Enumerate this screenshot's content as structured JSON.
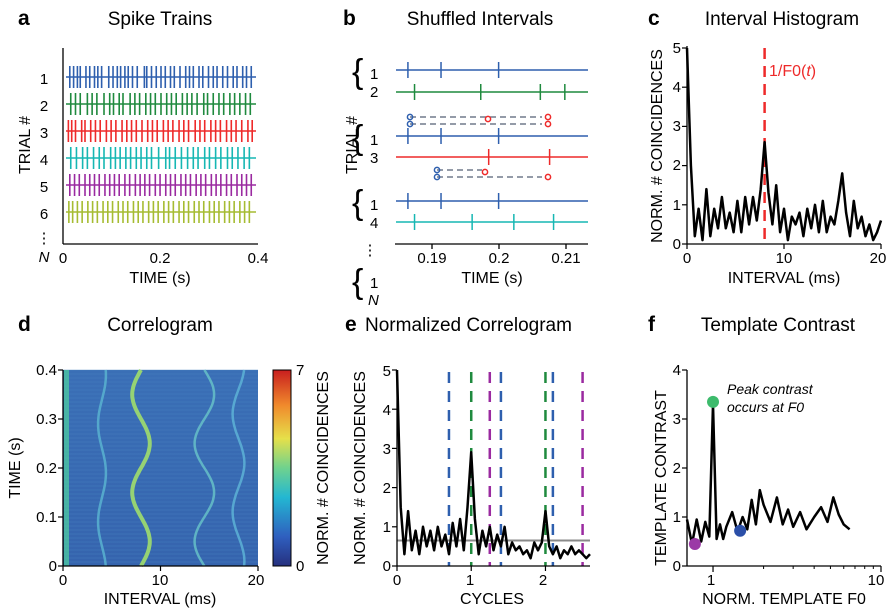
{
  "figure": {
    "panels": [
      {
        "letter": "a",
        "title": "Spike Trains",
        "xlabel": "TIME (s)",
        "ylabel": "TRIAL #"
      },
      {
        "letter": "b",
        "title": "Shuffled Intervals",
        "xlabel": "TIME (s)",
        "ylabel": "TRIAL #"
      },
      {
        "letter": "c",
        "title": "Interval Histogram",
        "xlabel": "INTERVAL (ms)",
        "ylabel": "NORM. # COINCIDENCES",
        "annotation": "1/F0(t)"
      },
      {
        "letter": "d",
        "title": "Correlogram",
        "xlabel": "INTERVAL (ms)",
        "ylabel": "TIME (s)",
        "colorbar_label": "NORM. # COINCIDENCES"
      },
      {
        "letter": "e",
        "title": "Normalized Correlogram",
        "xlabel": "CYCLES",
        "ylabel": "NORM. # COINCIDENCES"
      },
      {
        "letter": "f",
        "title": "Template Contrast",
        "xlabel": "NORM. TEMPLATE F0",
        "ylabel": "TEMPLATE CONTRAST",
        "annotation_line1": "Peak contrast",
        "annotation_line2": "occurs at F0"
      }
    ]
  },
  "colors": {
    "blue": "#2e5fae",
    "green": "#1f8a3e",
    "red": "#ee2a2a",
    "cyan": "#16b7b3",
    "purple": "#9a2aa0",
    "olive": "#a6bc32",
    "gray": "#8a8a8a",
    "dashgray": "#707a8c",
    "black": "#000000",
    "marker_green": "#3dbb6c",
    "marker_blue": "#2b4fa8",
    "marker_purple": "#9b3aa6"
  },
  "chart_data": [
    {
      "panel": "a",
      "type": "raster",
      "trial_labels": [
        "1",
        "2",
        "3",
        "4",
        "5",
        "6",
        "⋮",
        "N"
      ],
      "xticks": [
        "0",
        "0.2",
        "0.4"
      ],
      "xlim": [
        0,
        0.4
      ],
      "trials": [
        {
          "name": "1",
          "color": "blue",
          "spikes": [
            0.008,
            0.016,
            0.024,
            0.03,
            0.042,
            0.05,
            0.06,
            0.067,
            0.075,
            0.09,
            0.099,
            0.108,
            0.115,
            0.124,
            0.131,
            0.14,
            0.15,
            0.165,
            0.17,
            0.18,
            0.19,
            0.2,
            0.209,
            0.22,
            0.228,
            0.24,
            0.252,
            0.26,
            0.268,
            0.28,
            0.288,
            0.3,
            0.31,
            0.318,
            0.33,
            0.34,
            0.352,
            0.36,
            0.372,
            0.38,
            0.39
          ]
        },
        {
          "name": "2",
          "color": "green",
          "spikes": [
            0.01,
            0.02,
            0.03,
            0.045,
            0.055,
            0.065,
            0.08,
            0.092,
            0.1,
            0.112,
            0.12,
            0.135,
            0.145,
            0.155,
            0.168,
            0.178,
            0.188,
            0.2,
            0.212,
            0.222,
            0.232,
            0.245,
            0.255,
            0.265,
            0.276,
            0.29,
            0.298,
            0.31,
            0.322,
            0.332,
            0.345,
            0.355,
            0.366,
            0.378,
            0.388
          ]
        },
        {
          "name": "3",
          "color": "red",
          "spikes": [
            0.005,
            0.012,
            0.02,
            0.033,
            0.04,
            0.052,
            0.062,
            0.072,
            0.085,
            0.095,
            0.105,
            0.118,
            0.128,
            0.138,
            0.148,
            0.16,
            0.172,
            0.182,
            0.192,
            0.205,
            0.215,
            0.225,
            0.238,
            0.248,
            0.258,
            0.272,
            0.282,
            0.292,
            0.305,
            0.315,
            0.325,
            0.338,
            0.348,
            0.358,
            0.37,
            0.383,
            0.392
          ]
        },
        {
          "name": "4",
          "color": "cyan",
          "spikes": [
            0.01,
            0.022,
            0.035,
            0.045,
            0.058,
            0.07,
            0.08,
            0.094,
            0.104,
            0.114,
            0.126,
            0.136,
            0.148,
            0.158,
            0.17,
            0.18,
            0.195,
            0.21,
            0.218,
            0.23,
            0.243,
            0.256,
            0.268,
            0.278,
            0.292,
            0.302,
            0.315,
            0.326,
            0.34,
            0.35,
            0.362,
            0.375,
            0.386
          ]
        },
        {
          "name": "5",
          "color": "purple",
          "spikes": [
            0.008,
            0.018,
            0.028,
            0.04,
            0.05,
            0.06,
            0.07,
            0.082,
            0.092,
            0.102,
            0.112,
            0.124,
            0.134,
            0.146,
            0.156,
            0.166,
            0.176,
            0.188,
            0.198,
            0.21,
            0.22,
            0.23,
            0.242,
            0.252,
            0.262,
            0.274,
            0.284,
            0.294,
            0.306,
            0.316,
            0.326,
            0.338,
            0.348,
            0.36,
            0.37,
            0.38,
            0.39
          ]
        },
        {
          "name": "6",
          "color": "olive",
          "spikes": [
            0.006,
            0.014,
            0.024,
            0.034,
            0.046,
            0.056,
            0.066,
            0.078,
            0.088,
            0.098,
            0.11,
            0.12,
            0.13,
            0.142,
            0.152,
            0.162,
            0.174,
            0.184,
            0.194,
            0.206,
            0.216,
            0.226,
            0.238,
            0.248,
            0.258,
            0.27,
            0.28,
            0.29,
            0.302,
            0.312,
            0.322,
            0.334,
            0.344,
            0.354,
            0.366,
            0.376,
            0.386
          ]
        }
      ]
    },
    {
      "panel": "b",
      "type": "raster",
      "xticks": [
        "0.19",
        "0.2",
        "0.21"
      ],
      "xlim": [
        0.186,
        0.215
      ],
      "group_labels": [
        [
          "1",
          "2"
        ],
        [
          "1",
          "3"
        ],
        [
          "1",
          "4"
        ],
        [
          "1",
          "N"
        ]
      ],
      "ellipsis": "⋮",
      "rows": [
        {
          "color": "blue",
          "spikes": [
            0.1878,
            0.1928,
            0.2015
          ]
        },
        {
          "color": "green",
          "spikes": [
            0.1888,
            0.1988,
            0.2078,
            0.2115
          ]
        },
        {
          "color": "blue",
          "spikes": [
            0.1878,
            0.1928,
            0.2015
          ]
        },
        {
          "color": "red",
          "spikes": [
            0.2,
            0.2092
          ]
        },
        {
          "color": "blue",
          "spikes": [
            0.1878,
            0.1928,
            0.2015
          ]
        },
        {
          "color": "cyan",
          "spikes": [
            0.1888,
            0.1975,
            0.2038,
            0.2098
          ]
        }
      ]
    },
    {
      "panel": "c",
      "type": "line",
      "xticks": [
        "0",
        "10",
        "20"
      ],
      "yticks": [
        "0",
        "1",
        "2",
        "3",
        "4",
        "5"
      ],
      "xlim": [
        0,
        20
      ],
      "ylim": [
        0,
        5
      ],
      "marker_x": 8,
      "x": [
        0,
        0.4,
        0.8,
        1.2,
        1.6,
        2.0,
        2.4,
        2.8,
        3.2,
        3.6,
        4.0,
        4.4,
        4.8,
        5.2,
        5.6,
        6.0,
        6.4,
        6.8,
        7.2,
        7.6,
        8.0,
        8.4,
        8.8,
        9.2,
        9.6,
        10.0,
        10.4,
        10.8,
        11.2,
        11.6,
        12.0,
        12.4,
        12.8,
        13.2,
        13.6,
        14.0,
        14.4,
        14.8,
        15.2,
        15.6,
        16.0,
        16.4,
        16.8,
        17.2,
        17.6,
        18.0,
        18.4,
        18.8,
        19.2,
        19.6,
        20.0
      ],
      "y": [
        5.0,
        2.0,
        0.2,
        0.9,
        0.1,
        1.4,
        0.2,
        0.9,
        0.4,
        1.2,
        0.4,
        0.8,
        0.3,
        1.1,
        0.3,
        1.2,
        0.5,
        1.2,
        0.6,
        1.4,
        2.6,
        1.3,
        0.5,
        1.5,
        0.3,
        0.9,
        0.1,
        0.7,
        0.5,
        0.8,
        0.2,
        0.9,
        0.4,
        1.0,
        0.3,
        1.1,
        0.3,
        0.7,
        0.5,
        1.1,
        1.8,
        0.8,
        0.2,
        1.1,
        0.4,
        0.7,
        0.2,
        0.5,
        0.1,
        0.3,
        0.6
      ]
    },
    {
      "panel": "d",
      "type": "heatmap",
      "xticks": [
        "0",
        "10",
        "20"
      ],
      "yticks": [
        "0",
        "0.1",
        "0.2",
        "0.3",
        "0.4"
      ],
      "xlim": [
        0,
        20
      ],
      "ylim": [
        0,
        0.4
      ],
      "colorbar_ticks": [
        "7",
        "0"
      ],
      "clim": [
        0,
        7
      ],
      "ridges": [
        {
          "base": 8.0,
          "amp": 0.9,
          "period": 0.2,
          "phase": 0
        },
        {
          "base": 14.5,
          "amp": 1.0,
          "period": 0.2,
          "phase": 0.5
        },
        {
          "base": 4.0,
          "amp": 0.4,
          "period": 0.2,
          "phase": 0.3
        },
        {
          "base": 18.0,
          "amp": 0.6,
          "period": 0.2,
          "phase": 0.2
        }
      ]
    },
    {
      "panel": "e",
      "type": "line",
      "xticks": [
        "0",
        "1",
        "2"
      ],
      "yticks": [
        "0",
        "1",
        "2",
        "3",
        "4",
        "5"
      ],
      "xlim": [
        0,
        2.6
      ],
      "ylim": [
        0,
        5
      ],
      "baseline": 0.65,
      "x": [
        0,
        0.05,
        0.1,
        0.15,
        0.2,
        0.25,
        0.3,
        0.35,
        0.4,
        0.45,
        0.5,
        0.55,
        0.6,
        0.65,
        0.7,
        0.75,
        0.8,
        0.85,
        0.9,
        0.95,
        1.0,
        1.05,
        1.1,
        1.15,
        1.2,
        1.25,
        1.3,
        1.35,
        1.4,
        1.45,
        1.5,
        1.55,
        1.6,
        1.65,
        1.7,
        1.75,
        1.8,
        1.85,
        1.9,
        1.95,
        2.0,
        2.05,
        2.1,
        2.15,
        2.2,
        2.25,
        2.3,
        2.35,
        2.4,
        2.45,
        2.5,
        2.55,
        2.6
      ],
      "y": [
        5.0,
        1.5,
        0.3,
        1.4,
        0.4,
        0.9,
        0.3,
        1.0,
        0.5,
        0.9,
        0.4,
        1.0,
        0.5,
        0.8,
        0.3,
        1.1,
        0.5,
        1.2,
        0.4,
        1.5,
        2.9,
        1.2,
        0.3,
        0.9,
        0.5,
        1.0,
        0.4,
        0.8,
        0.5,
        1.0,
        0.3,
        0.6,
        0.4,
        0.5,
        0.3,
        0.4,
        0.2,
        0.6,
        0.4,
        0.6,
        1.4,
        0.5,
        0.3,
        0.5,
        0.2,
        0.4,
        0.3,
        0.5,
        0.3,
        0.4,
        0.3,
        0.2,
        0.3
      ],
      "vlines": [
        {
          "color": "blue",
          "x": [
            0.7,
            1.4,
            2.1
          ]
        },
        {
          "color": "green",
          "x": [
            1.0,
            2.0
          ]
        },
        {
          "color": "purple",
          "x": [
            1.25,
            2.5
          ]
        }
      ]
    },
    {
      "panel": "f",
      "type": "line",
      "xscale": "log",
      "xticks": [
        "1",
        "10"
      ],
      "yticks": [
        "0",
        "1",
        "2",
        "3",
        "4"
      ],
      "xlim": [
        0.7,
        10
      ],
      "ylim": [
        0,
        4
      ],
      "x": [
        0.7,
        0.75,
        0.8,
        0.85,
        0.9,
        0.95,
        1.0,
        1.05,
        1.1,
        1.15,
        1.2,
        1.3,
        1.4,
        1.5,
        1.6,
        1.7,
        1.8,
        1.9,
        2.0,
        2.2,
        2.4,
        2.6,
        2.8,
        3.0,
        3.3,
        3.6,
        4.0,
        4.4,
        4.8,
        5.2,
        5.6,
        6.0,
        6.5
      ],
      "y": [
        0.95,
        0.45,
        0.95,
        0.5,
        0.9,
        0.6,
        3.3,
        0.55,
        0.85,
        0.55,
        0.8,
        1.1,
        0.7,
        1.0,
        0.75,
        1.35,
        0.85,
        1.55,
        1.25,
        0.9,
        1.4,
        0.85,
        1.15,
        0.8,
        1.1,
        0.75,
        1.0,
        1.2,
        0.9,
        1.4,
        1.05,
        0.85,
        0.75
      ],
      "markers": [
        {
          "color": "marker_green",
          "x": 1.0,
          "y": 3.35
        },
        {
          "color": "marker_blue",
          "x": 1.45,
          "y": 0.72
        },
        {
          "color": "marker_purple",
          "x": 0.78,
          "y": 0.45
        }
      ]
    }
  ]
}
